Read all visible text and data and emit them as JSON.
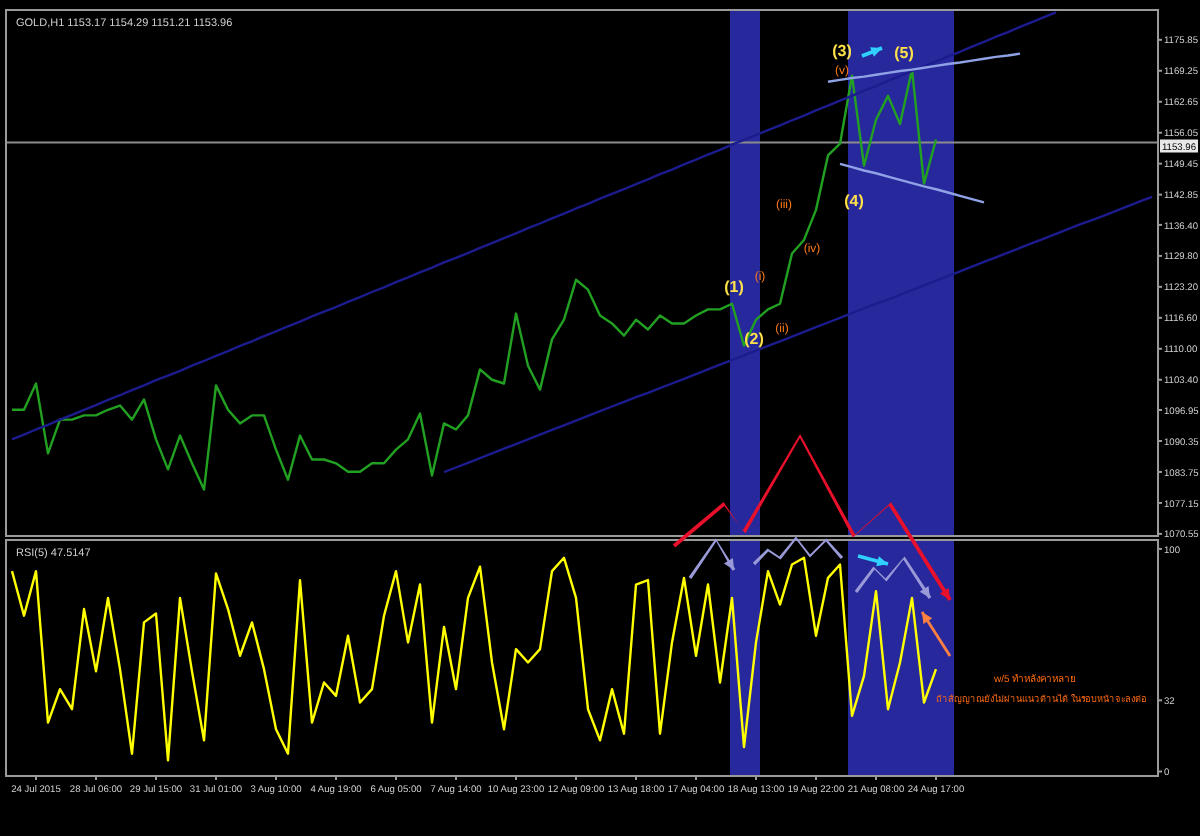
{
  "chart_data": [
    {
      "type": "line",
      "title": "GOLD,H1  1153.17 1154.29 1151.21 1153.96",
      "ylim": [
        1070.1,
        1182.2
      ],
      "grid": false,
      "categories": [
        null,
        null,
        null,
        null,
        null,
        null,
        null,
        null,
        null,
        null,
        null,
        null,
        null,
        null,
        null,
        null,
        null,
        null,
        null,
        null,
        null,
        null,
        null,
        null,
        null,
        null,
        null,
        null,
        null,
        null,
        null,
        null,
        null,
        null,
        null,
        null,
        null,
        null,
        null,
        null,
        null,
        null,
        null,
        null,
        null,
        null,
        null,
        null,
        null,
        null,
        null,
        null,
        null,
        null,
        null,
        null,
        null,
        null,
        null,
        null,
        null,
        null,
        null,
        null,
        null,
        null,
        null,
        null,
        null,
        null,
        null,
        null,
        null,
        null,
        null,
        null,
        null,
        null,
        null,
        null,
        null,
        null,
        null,
        null,
        null,
        null,
        null,
        null,
        null,
        null,
        null,
        null,
        null,
        null,
        null,
        null
      ],
      "yticks": [
        {
          "value": 1175.85,
          "label": "1175.85"
        },
        {
          "value": 1169.25,
          "label": "1169.25"
        },
        {
          "value": 1162.65,
          "label": "1162.65"
        },
        {
          "value": 1156.05,
          "label": "1156.05"
        },
        {
          "value": 1149.45,
          "label": "1149.45"
        },
        {
          "value": 1142.85,
          "label": "1142.85"
        },
        {
          "value": 1136.4,
          "label": "1136.40"
        },
        {
          "value": 1129.8,
          "label": "1129.80"
        },
        {
          "value": 1123.2,
          "label": "1123.20"
        },
        {
          "value": 1116.6,
          "label": "1116.60"
        },
        {
          "value": 1110.0,
          "label": "1110.00"
        },
        {
          "value": 1103.4,
          "label": "1103.40"
        },
        {
          "value": 1096.95,
          "label": "1096.95"
        },
        {
          "value": 1090.35,
          "label": "1090.35"
        },
        {
          "value": 1083.75,
          "label": "1083.75"
        },
        {
          "value": 1077.15,
          "label": "1077.15"
        },
        {
          "value": 1070.55,
          "label": "1070.55"
        }
      ],
      "series": [
        {
          "color": "#22a022",
          "values": [
            1097.0,
            1097.0,
            1102.6,
            1087.7,
            1094.9,
            1094.9,
            1095.8,
            1095.8,
            1097.0,
            1097.9,
            1094.9,
            1099.2,
            1090.7,
            1084.3,
            1091.5,
            1085.6,
            1080.0,
            1102.2,
            1097.0,
            1094.1,
            1095.8,
            1095.8,
            1088.5,
            1082.1,
            1091.5,
            1086.4,
            1086.4,
            1085.6,
            1083.8,
            1083.8,
            1085.6,
            1085.6,
            1088.5,
            1090.7,
            1096.2,
            1083.0,
            1094.1,
            1092.8,
            1095.8,
            1105.6,
            1103.4,
            1102.6,
            1117.5,
            1106.4,
            1101.3,
            1112.0,
            1116.2,
            1124.7,
            1122.6,
            1117.1,
            1115.4,
            1112.8,
            1116.2,
            1114.1,
            1117.1,
            1115.4,
            1115.4,
            1117.1,
            1118.4,
            1118.4,
            1119.6,
            1110.7,
            1116.2,
            1118.4,
            1119.6,
            1130.3,
            1133.2,
            1139.6,
            1151.2,
            1153.7,
            1168.2,
            1149.0,
            1158.8,
            1163.9,
            1157.9,
            1169.5,
            1145.2,
            1154.6,
            null,
            null,
            null,
            null,
            null,
            null,
            null,
            null,
            null,
            null,
            null,
            null,
            null,
            null,
            null,
            null,
            null,
            null
          ]
        },
        {
          "color": "#1c1c8e",
          "values": [
            1090.7,
            1091.7,
            1092.8,
            1093.8,
            1094.9,
            1095.9,
            1097.0,
            1098.0,
            1099.1,
            1100.1,
            1101.2,
            1102.2,
            1103.3,
            1104.3,
            1105.3,
            1106.4,
            1107.4,
            1108.5,
            1109.5,
            1110.6,
            1111.6,
            1112.7,
            1113.7,
            1114.8,
            1115.8,
            1116.9,
            1117.9,
            1118.9,
            1120.0,
            1121.0,
            1122.1,
            1123.1,
            1124.2,
            1125.2,
            1126.3,
            1127.3,
            1128.4,
            1129.4,
            1130.4,
            1131.5,
            1132.5,
            1133.6,
            1134.6,
            1135.7,
            1136.7,
            1137.8,
            1138.8,
            1139.9,
            1140.9,
            1142.0,
            1143.0,
            1144.0,
            1145.1,
            1146.1,
            1147.2,
            1148.2,
            1149.3,
            1150.3,
            1151.4,
            1152.4,
            1153.5,
            1154.5,
            1155.6,
            1156.6,
            1157.6,
            1158.7,
            1159.7,
            1160.8,
            1161.8,
            1162.9,
            1163.9,
            1165.0,
            1166.0,
            1167.1,
            1168.1,
            1169.2,
            1170.2,
            1171.2,
            1172.3,
            1173.3,
            1174.4,
            1175.4,
            1176.5,
            1177.5,
            1178.6,
            1179.6,
            1180.7,
            1181.7,
            null,
            null,
            null,
            null,
            null,
            null,
            null,
            null
          ]
        },
        {
          "color": "#1c1c8e",
          "values": [
            null,
            null,
            null,
            null,
            null,
            null,
            null,
            null,
            null,
            null,
            null,
            null,
            null,
            null,
            null,
            null,
            null,
            null,
            null,
            null,
            null,
            null,
            null,
            null,
            null,
            null,
            null,
            null,
            null,
            null,
            null,
            null,
            null,
            null,
            null,
            null,
            1083.7,
            1084.7,
            1085.7,
            1086.7,
            1087.7,
            1088.7,
            1089.7,
            1090.7,
            1091.7,
            1092.7,
            1093.7,
            1094.7,
            1095.7,
            1096.7,
            1097.7,
            1098.7,
            1099.7,
            1100.6,
            1101.6,
            1102.6,
            1103.6,
            1104.6,
            1105.6,
            1106.6,
            1107.6,
            1108.6,
            1109.6,
            1110.6,
            1111.6,
            1112.6,
            1113.6,
            1114.6,
            1115.6,
            1116.6,
            1117.6,
            1118.6,
            1119.6,
            1120.5,
            1121.5,
            1122.5,
            1123.5,
            1124.5,
            1125.5,
            1126.5,
            1127.5,
            1128.5,
            1129.5,
            1130.5,
            1131.5,
            1132.5,
            1133.5,
            1134.5,
            1135.5,
            1136.5,
            1137.4,
            1138.4,
            1139.4,
            1140.4,
            1141.4,
            1142.4
          ]
        },
        {
          "color": "#8fa2e6",
          "values": [
            null,
            null,
            null,
            null,
            null,
            null,
            null,
            null,
            null,
            null,
            null,
            null,
            null,
            null,
            null,
            null,
            null,
            null,
            null,
            null,
            null,
            null,
            null,
            null,
            null,
            null,
            null,
            null,
            null,
            null,
            null,
            null,
            null,
            null,
            null,
            null,
            null,
            null,
            null,
            null,
            null,
            null,
            null,
            null,
            null,
            null,
            null,
            null,
            null,
            null,
            null,
            null,
            null,
            null,
            null,
            null,
            null,
            null,
            null,
            null,
            null,
            null,
            null,
            null,
            null,
            null,
            null,
            null,
            1166.9,
            1167.3,
            1167.7,
            1168.0,
            1168.4,
            1168.8,
            1169.2,
            1169.5,
            1169.9,
            1170.3,
            1170.7,
            1171.0,
            1171.4,
            1171.8,
            1172.2,
            1172.5,
            1172.9,
            null,
            null,
            null,
            null,
            null,
            null,
            null,
            null,
            null,
            null,
            null
          ]
        },
        {
          "color": "#8fa2e6",
          "values": [
            null,
            null,
            null,
            null,
            null,
            null,
            null,
            null,
            null,
            null,
            null,
            null,
            null,
            null,
            null,
            null,
            null,
            null,
            null,
            null,
            null,
            null,
            null,
            null,
            null,
            null,
            null,
            null,
            null,
            null,
            null,
            null,
            null,
            null,
            null,
            null,
            null,
            null,
            null,
            null,
            null,
            null,
            null,
            null,
            null,
            null,
            null,
            null,
            null,
            null,
            null,
            null,
            null,
            null,
            null,
            null,
            null,
            null,
            null,
            null,
            null,
            null,
            null,
            null,
            null,
            null,
            null,
            null,
            null,
            1149.4,
            1148.7,
            1148.0,
            1147.4,
            1146.7,
            1146.0,
            1145.3,
            1144.6,
            1144.0,
            1143.3,
            1142.6,
            1141.9,
            1141.2,
            null,
            null,
            null,
            null,
            null,
            null,
            null,
            null,
            null,
            null,
            null,
            null,
            null,
            null
          ]
        }
      ],
      "ref_lines": [
        {
          "axis": "y",
          "value": 1153.96,
          "label": "1153.96",
          "color": "#8c8c8c"
        }
      ],
      "annotations": [
        "(1)",
        "(2)",
        "(3)",
        "(4)",
        "(5)",
        "(i)",
        "(ii)",
        "(iii)",
        "(iv)",
        "(v)"
      ]
    },
    {
      "type": "line",
      "title": "RSI(5) 47.5147",
      "ylim": [
        -2,
        104
      ],
      "yticks": [
        0,
        32,
        100
      ],
      "grid": false,
      "categories": [
        null,
        null,
        "24 Jul 2015",
        null,
        null,
        null,
        null,
        "28 Jul 06:00",
        null,
        null,
        null,
        null,
        "29 Jul 15:00",
        null,
        null,
        null,
        null,
        "31 Jul 01:00",
        null,
        null,
        null,
        null,
        "3 Aug 10:00",
        null,
        null,
        null,
        null,
        "4 Aug 19:00",
        null,
        null,
        null,
        null,
        "6 Aug 05:00",
        null,
        null,
        null,
        null,
        "7 Aug 14:00",
        null,
        null,
        null,
        null,
        "10 Aug 23:00",
        null,
        null,
        null,
        null,
        "12 Aug 09:00",
        null,
        null,
        null,
        null,
        "13 Aug 18:00",
        null,
        null,
        null,
        null,
        "17 Aug 04:00",
        null,
        null,
        null,
        null,
        "18 Aug 13:00",
        null,
        null,
        null,
        null,
        "19 Aug 22:00",
        null,
        null,
        null,
        null,
        "21 Aug 08:00",
        null,
        null,
        null,
        null,
        "24 Aug 17:00",
        null,
        null,
        null,
        null,
        null,
        null,
        null,
        null,
        null,
        null,
        null,
        null,
        null,
        null,
        null,
        null,
        null,
        null
      ],
      "series": [
        {
          "color": "#ffff00",
          "values": [
            90,
            70,
            90,
            22,
            37,
            28,
            73,
            45,
            78,
            46,
            8,
            67,
            71,
            5,
            78,
            45,
            14,
            89,
            73,
            52,
            67,
            46,
            19,
            8,
            86,
            22,
            40,
            34,
            61,
            31,
            37,
            70,
            90,
            58,
            84,
            22,
            65,
            37,
            78,
            92,
            49,
            19,
            55,
            49,
            55,
            90,
            96,
            78,
            28,
            14,
            37,
            17,
            84,
            86,
            17,
            58,
            87,
            52,
            84,
            40,
            78,
            11,
            58,
            90,
            75,
            93,
            96,
            61,
            87,
            93,
            25,
            43,
            81,
            28,
            49,
            78,
            31,
            46,
            null,
            null,
            null,
            null,
            null,
            null,
            null,
            null,
            null,
            null,
            null,
            null,
            null,
            null,
            null,
            null,
            null,
            null
          ]
        }
      ],
      "annotations": [
        "w/5  ทำหลังคาหลาย",
        "ถ้าสัญญาณยังไม่ผ่านแนวต้านได้ ในรอบหน้าจะลงต่อ"
      ]
    }
  ]
}
